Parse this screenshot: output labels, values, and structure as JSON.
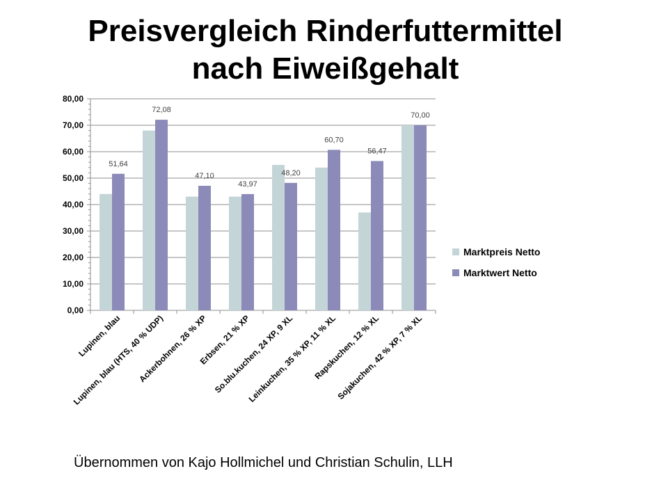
{
  "slide": {
    "title_line1": "Preisvergleich Rinderfuttermittel",
    "title_line2": "nach Eiweißgehalt",
    "footer": "Übernommen von Kajo Hollmichel und Christian Schulin, LLH"
  },
  "chart_data": {
    "type": "bar",
    "title": "",
    "xlabel": "",
    "ylabel": "",
    "ylim": [
      0,
      80
    ],
    "yticks": [
      "0,00",
      "10,00",
      "20,00",
      "30,00",
      "40,00",
      "50,00",
      "60,00",
      "70,00",
      "80,00"
    ],
    "grid": true,
    "legend_position": "right",
    "categories": [
      "Lupinen, blau",
      "Lupinen, blau (HTS, 40 % UDP)",
      "Ackerbohnen, 26 % XP",
      "Erbsen, 21 % XP",
      "So.blu.kuchen, 24 XP, 9 XL",
      "Leinkuchen, 35 % XP, 11 % XL",
      "Rapskuchen, 12 % XL",
      "Sojakuchen, 42 % XP, 7 % XL"
    ],
    "series": [
      {
        "name": "Marktpreis Netto",
        "color": "#c4d5d7",
        "values": [
          44.0,
          68.0,
          43.0,
          43.0,
          55.0,
          54.0,
          37.0,
          70.0
        ],
        "data_labels": [
          "",
          "",
          "",
          "",
          "",
          "",
          "",
          ""
        ]
      },
      {
        "name": "Marktwert Netto",
        "color": "#8b8ab8",
        "values": [
          51.64,
          72.08,
          47.1,
          43.97,
          48.2,
          60.7,
          56.47,
          70.0
        ],
        "data_labels": [
          "51,64",
          "72,08",
          "47,10",
          "43,97",
          "48,20",
          "60,70",
          "56,47",
          "70,00"
        ]
      }
    ]
  }
}
